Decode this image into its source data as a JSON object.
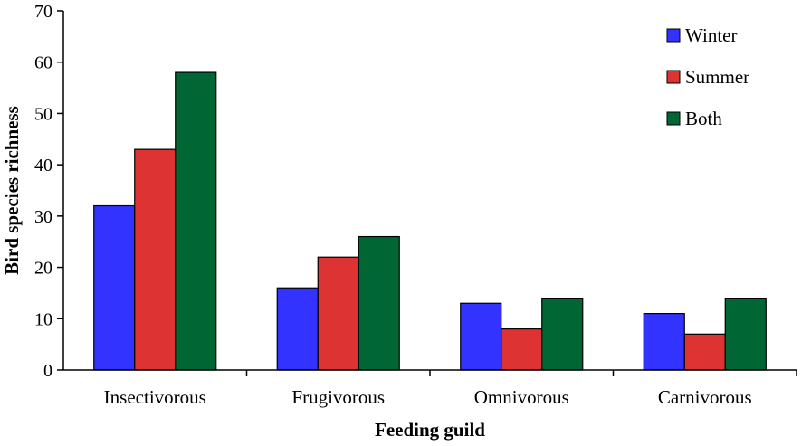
{
  "chart_data": {
    "type": "bar",
    "title": "",
    "xlabel": "Feeding guild",
    "ylabel": "Bird species richness",
    "ylim": [
      0,
      70
    ],
    "yticks": [
      0,
      10,
      20,
      30,
      40,
      50,
      60,
      70
    ],
    "grid": false,
    "legend_position": "top-right",
    "categories": [
      "Insectivorous",
      "Frugivorous",
      "Omnivorous",
      "Carnivorous"
    ],
    "series": [
      {
        "name": "Winter",
        "color": "#3333ff",
        "values": [
          32,
          16,
          13,
          11
        ]
      },
      {
        "name": "Summer",
        "color": "#dd3333",
        "values": [
          43,
          22,
          8,
          7
        ]
      },
      {
        "name": "Both",
        "color": "#006633",
        "values": [
          58,
          26,
          14,
          14
        ]
      }
    ]
  }
}
